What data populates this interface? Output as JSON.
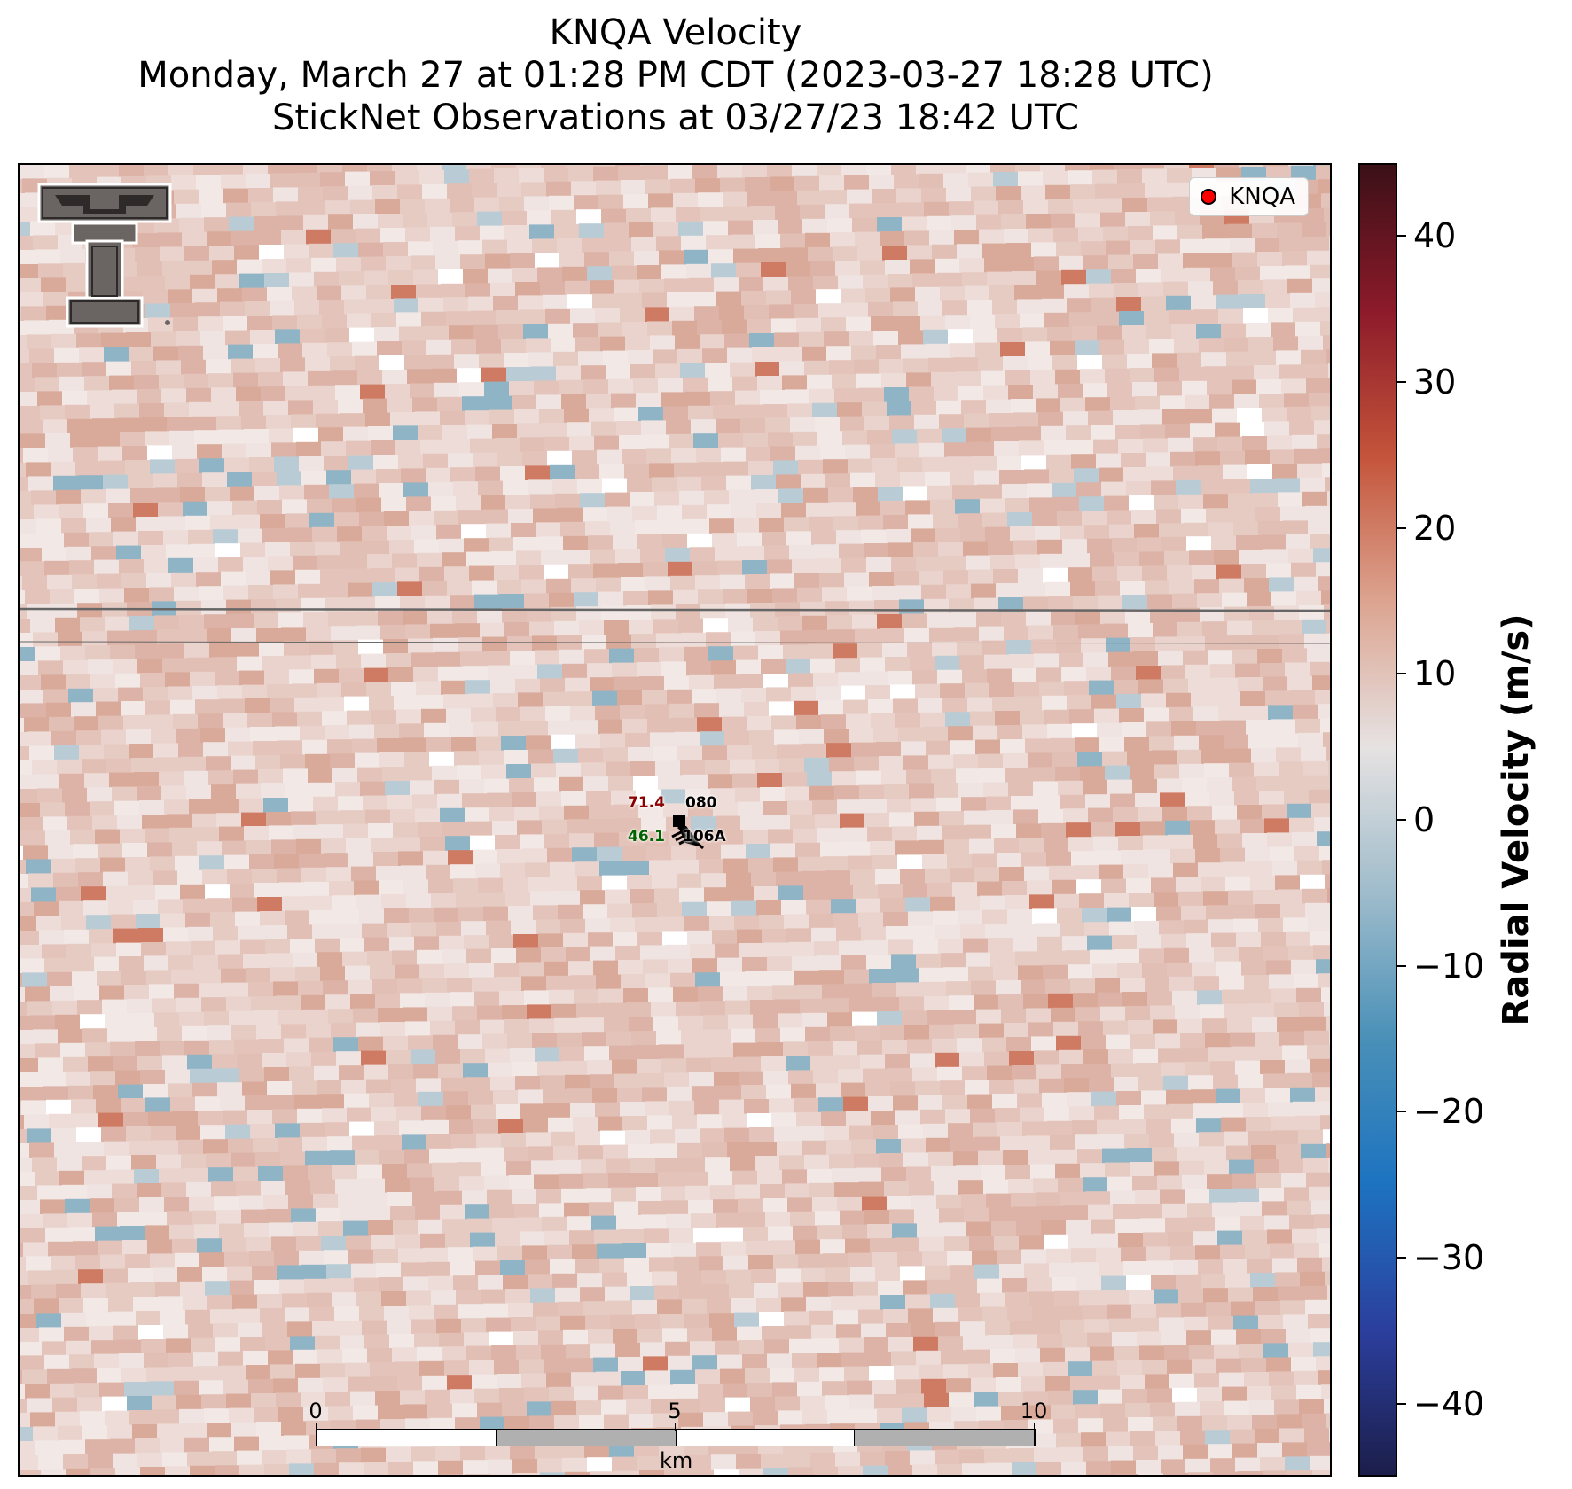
{
  "title": {
    "line1": "KNQA Velocity",
    "line2": "Monday, March 27 at 01:28 PM CDT (2023-03-27 18:28 UTC)",
    "line3": "StickNet Observations at 03/27/23 18:42 UTC"
  },
  "legend": {
    "label": "KNQA",
    "marker_color": "#ff0000"
  },
  "colorbar": {
    "label": "Radial Velocity (m/s)",
    "range": [
      -45,
      45
    ],
    "ticks": [
      "40",
      "30",
      "20",
      "10",
      "0",
      "−10",
      "−20",
      "−30",
      "−40"
    ],
    "tick_values": [
      40,
      30,
      20,
      10,
      0,
      -10,
      -20,
      -30,
      -40
    ],
    "colormap": [
      "#1c1e4a",
      "#2b3f9e",
      "#1d73c0",
      "#4a90b8",
      "#9fbccb",
      "#e6e2e2",
      "#dca490",
      "#c4543a",
      "#8c1a2a",
      "#3b1017"
    ]
  },
  "station": {
    "id": "080",
    "temperature": "71.4",
    "temperature_color": "#8b0000",
    "dewpoint": "46.1",
    "dewpoint_color": "#006400",
    "station_label": "106A",
    "wind_barb": "wind-barb-icon"
  },
  "scale_bar": {
    "unit": "km",
    "ticks": [
      "0",
      "5",
      "10"
    ]
  },
  "logo": {
    "name": "texas-tech-double-t-logo"
  },
  "colors": {
    "background_field": "#e8c8c0",
    "frame": "#000000"
  }
}
